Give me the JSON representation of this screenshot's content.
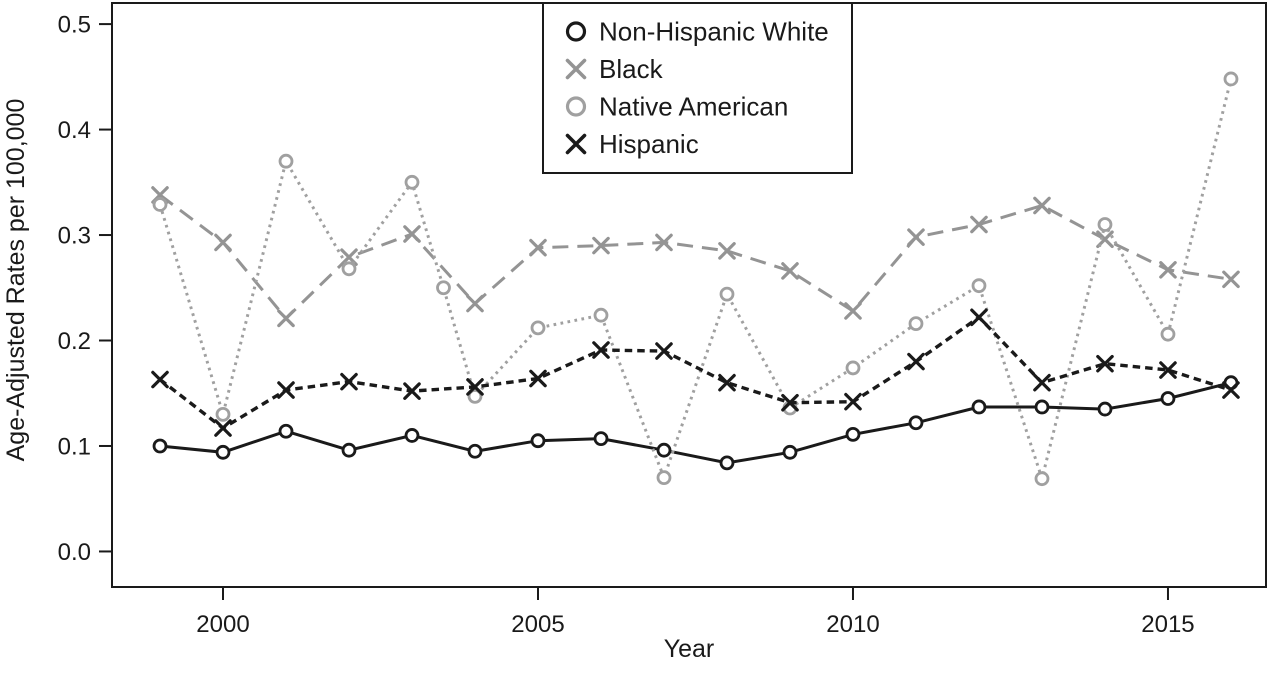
{
  "figure": {
    "background": "#ffffff"
  },
  "chart_data": {
    "type": "line",
    "title": "",
    "xlabel": "Year",
    "ylabel": "Age-Adjusted Rates per 100,000",
    "xlim": [
      1998.238,
      2016.556
    ],
    "ylim": [
      -0.0337,
      0.52
    ],
    "x_ticks": [
      2000,
      2005,
      2010,
      2015
    ],
    "y_ticks": [
      0.0,
      0.1,
      0.2,
      0.3,
      0.4,
      0.5
    ],
    "y_tick_labels": [
      "0.0",
      "0.1",
      "0.2",
      "0.3",
      "0.4",
      "0.5"
    ],
    "grid": false,
    "frame_color": "#1a1a1a",
    "legend_position": "top-center",
    "series": [
      {
        "name": "Non-Hispanic White",
        "color": "#1a1a1a",
        "line_style": "solid",
        "line_width": 3,
        "marker": "open-circle",
        "x": [
          1999,
          2000,
          2001,
          2002,
          2003,
          2004,
          2005,
          2006,
          2007,
          2008,
          2009,
          2010,
          2011,
          2012,
          2013,
          2014,
          2015,
          2016
        ],
        "values": [
          0.1,
          0.094,
          0.114,
          0.096,
          0.11,
          0.095,
          0.105,
          0.107,
          0.096,
          0.084,
          0.094,
          0.111,
          0.122,
          0.137,
          0.137,
          0.135,
          0.145,
          0.16
        ]
      },
      {
        "name": "Black",
        "color": "#949494",
        "line_style": "long-dash",
        "line_width": 3,
        "marker": "x",
        "x": [
          1999,
          2000,
          2001,
          2002,
          2003,
          2004,
          2005,
          2006,
          2007,
          2008,
          2009,
          2010,
          2011,
          2012,
          2013,
          2014,
          2015,
          2016
        ],
        "values": [
          0.338,
          0.293,
          0.221,
          0.279,
          0.301,
          0.235,
          0.288,
          0.29,
          0.293,
          0.285,
          0.266,
          0.228,
          0.298,
          0.31,
          0.328,
          0.296,
          0.267,
          0.258
        ]
      },
      {
        "name": "Native American",
        "color": "#a0a0a0",
        "line_style": "dotted",
        "line_width": 3,
        "marker": "open-circle",
        "x": [
          1999,
          2000,
          2001,
          2002,
          2003,
          2003.5,
          2004,
          2005,
          2006,
          2007,
          2008,
          2009,
          2010,
          2011,
          2012,
          2013,
          2014,
          2015,
          2016
        ],
        "values": [
          0.329,
          0.13,
          0.37,
          0.268,
          0.35,
          0.25,
          0.147,
          0.212,
          0.224,
          0.07,
          0.244,
          0.136,
          0.174,
          0.216,
          0.252,
          0.069,
          0.31,
          0.206,
          0.448
        ]
      },
      {
        "name": "Hispanic",
        "color": "#1a1a1a",
        "line_style": "short-dash",
        "line_width": 3.4,
        "marker": "x",
        "x": [
          1999,
          2000,
          2001,
          2002,
          2003,
          2004,
          2005,
          2006,
          2007,
          2008,
          2009,
          2010,
          2011,
          2012,
          2013,
          2014,
          2015,
          2016
        ],
        "values": [
          0.163,
          0.117,
          0.153,
          0.161,
          0.152,
          0.156,
          0.164,
          0.191,
          0.19,
          0.16,
          0.141,
          0.142,
          0.18,
          0.222,
          0.16,
          0.178,
          0.172,
          0.153
        ]
      }
    ]
  }
}
